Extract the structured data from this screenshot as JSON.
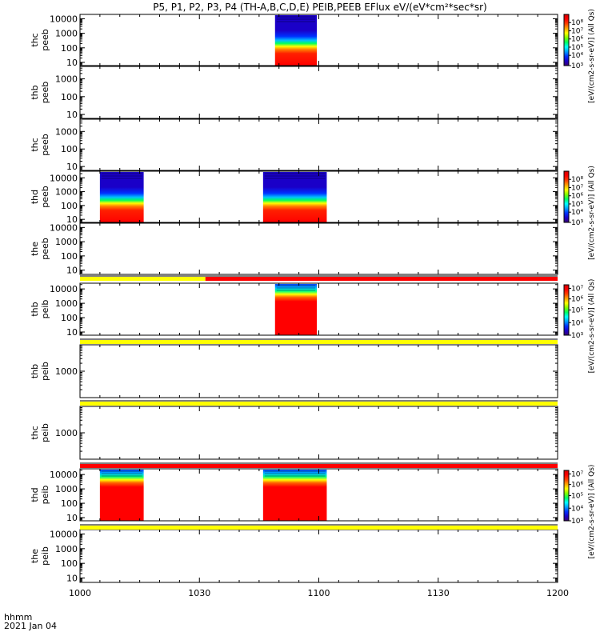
{
  "chart_data": {
    "type": "heatmap",
    "title": "P5, P1, P2, P3, P4 (TH-A,B,C,D,E) PEIB,PEEB EFlux eV/(eV*cm²*sec*sr)",
    "x_axis": {
      "date_label": "2021 Jan 04",
      "format_label": "hhmm",
      "range_minutes": [
        0,
        120
      ],
      "ticks": [
        {
          "minute": 0,
          "label": "1000"
        },
        {
          "minute": 30,
          "label": "1030"
        },
        {
          "minute": 60,
          "label": "1100"
        },
        {
          "minute": 90,
          "label": "1130"
        },
        {
          "minute": 120,
          "label": "1200"
        }
      ]
    },
    "panels": [
      {
        "probe": "thc",
        "product": "peeb",
        "yscale": "log",
        "ylim": [
          6,
          20000
        ],
        "tick_labels": [
          "10000",
          "1000",
          "100",
          "10"
        ],
        "blocks": [
          {
            "start": 49,
            "end": 59.5
          }
        ],
        "colorbar": {
          "group": 1
        }
      },
      {
        "probe": "thb",
        "product": "peeb",
        "yscale": "log",
        "ylim": [
          6,
          5000
        ],
        "tick_labels": [
          "1000",
          "100",
          "10"
        ],
        "blocks": []
      },
      {
        "probe": "thc",
        "product": "peeb",
        "yscale": "log",
        "ylim": [
          6,
          5000
        ],
        "tick_labels": [
          "1000",
          "100",
          "10"
        ],
        "blocks": []
      },
      {
        "probe": "thd",
        "product": "peeb",
        "yscale": "log",
        "ylim": [
          6,
          30000
        ],
        "tick_labels": [
          "10000",
          "1000",
          "100",
          "10"
        ],
        "blocks": [
          {
            "start": 5,
            "end": 16
          },
          {
            "start": 46,
            "end": 62
          }
        ],
        "colorbar": {
          "group": 2
        }
      },
      {
        "probe": "the",
        "product": "peeb",
        "yscale": "log",
        "ylim": [
          5,
          20000
        ],
        "tick_labels": [
          "10000",
          "1000",
          "100",
          "10"
        ],
        "blocks": []
      },
      {
        "probe": "thb",
        "product": "peib",
        "yscale": "log",
        "ylim": [
          6,
          25000
        ],
        "tick_labels": [
          "10000",
          "1000",
          "100",
          "10"
        ],
        "blocks": [
          {
            "start": 49,
            "end": 59.5
          }
        ],
        "colorbar": {
          "group": 3
        }
      },
      {
        "probe": "thb",
        "product": "peib",
        "yscale": "log",
        "ylim": [
          100,
          10000
        ],
        "tick_labels": [
          "1000"
        ],
        "blocks": []
      },
      {
        "probe": "thc",
        "product": "peib",
        "yscale": "log",
        "ylim": [
          100,
          10000
        ],
        "tick_labels": [
          "1000"
        ],
        "blocks": []
      },
      {
        "probe": "thd",
        "product": "peib",
        "yscale": "log",
        "ylim": [
          6,
          25000
        ],
        "tick_labels": [
          "10000",
          "1000",
          "100",
          "10"
        ],
        "blocks": [
          {
            "start": 5,
            "end": 16
          },
          {
            "start": 46,
            "end": 62
          }
        ],
        "colorbar": {
          "group": 4
        }
      },
      {
        "probe": "the",
        "product": "peib",
        "yscale": "log",
        "ylim": [
          5,
          20000
        ],
        "tick_labels": [
          "10000",
          "1000",
          "100",
          "10"
        ],
        "blocks": []
      }
    ],
    "status_bars": [
      {
        "above_panel": 5,
        "segments": [
          {
            "start": 0,
            "end": 31.5,
            "color": "#ffff00"
          },
          {
            "start": 31.5,
            "end": 120,
            "color": "#ff0000"
          }
        ]
      },
      {
        "above_panel": 6,
        "segments": [
          {
            "start": 0,
            "end": 120,
            "color": "#ffff00"
          }
        ]
      },
      {
        "above_panel": 7,
        "segments": [
          {
            "start": 0,
            "end": 120,
            "color": "#ffff00"
          }
        ]
      },
      {
        "above_panel": 8,
        "segments": [
          {
            "start": 0,
            "end": 120,
            "color": "#ff0000"
          }
        ]
      },
      {
        "above_panel": 9,
        "segments": [
          {
            "start": 0,
            "end": 120,
            "color": "#ffff00"
          }
        ]
      }
    ],
    "colorbars": [
      {
        "group": 1,
        "ticks": [
          {
            "value": "10³",
            "t": 0.0
          },
          {
            "value": "10⁴",
            "t": 0.2
          },
          {
            "value": "10⁵",
            "t": 0.36
          },
          {
            "value": "10⁶",
            "t": 0.52
          },
          {
            "value": "10⁷",
            "t": 0.68
          },
          {
            "value": "10⁸",
            "t": 0.84
          }
        ],
        "label_lines": [
          "[eV/(cm2-s-sr-eV)] (All Qs)"
        ]
      },
      {
        "group": 2,
        "ticks": [
          {
            "value": "10³",
            "t": 0.0
          },
          {
            "value": "10⁴",
            "t": 0.2
          },
          {
            "value": "10⁵",
            "t": 0.36
          },
          {
            "value": "10⁶",
            "t": 0.52
          },
          {
            "value": "10⁷",
            "t": 0.68
          },
          {
            "value": "10⁸",
            "t": 0.84
          }
        ],
        "label_lines": [
          "[eV/(cm2-s-sr-eV)] (All Qs)"
        ]
      },
      {
        "group": 3,
        "ticks": [
          {
            "value": "10³",
            "t": 0.0
          },
          {
            "value": "10⁴",
            "t": 0.25
          },
          {
            "value": "10⁵",
            "t": 0.5
          },
          {
            "value": "10⁶",
            "t": 0.72
          },
          {
            "value": "10⁷",
            "t": 0.93
          }
        ],
        "label_lines": [
          "[eV/(cm2-s-sr-eV)] (All Qs)"
        ]
      },
      {
        "group": 4,
        "ticks": [
          {
            "value": "10³",
            "t": 0.0
          },
          {
            "value": "10⁴",
            "t": 0.25
          },
          {
            "value": "10⁵",
            "t": 0.5
          },
          {
            "value": "10⁶",
            "t": 0.72
          },
          {
            "value": "10⁷",
            "t": 0.93
          }
        ],
        "label_lines": [
          "[eV/(cm2-s-sr-eV)] (All Qs)"
        ]
      }
    ],
    "colors": {
      "colormap": [
        "#3a0070",
        "#1a00c8",
        "#0030ff",
        "#00a0ff",
        "#00ffff",
        "#00ff60",
        "#80ff00",
        "#ffff00",
        "#ffa000",
        "#ff4000",
        "#ff0000",
        "#d00000"
      ]
    }
  }
}
